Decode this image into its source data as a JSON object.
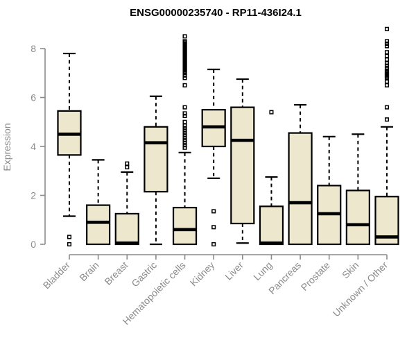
{
  "chart_data": {
    "type": "boxplot",
    "title": "ENSG00000235740 - RP11-436I24.1",
    "ylabel": "Expression",
    "xlabel": "",
    "ylim": [
      0,
      8.8
    ],
    "yticks": [
      0,
      2,
      4,
      6,
      8
    ],
    "grid": false,
    "legend": "none",
    "categories": [
      "Bladder",
      "Brain",
      "Breast",
      "Gastric",
      "Hematopoietic cells",
      "Kidney",
      "Liver",
      "Lung",
      "Pancreas",
      "Prostate",
      "Skin",
      "Unknown / Other"
    ],
    "series": [
      {
        "name": "Bladder",
        "whislo": 1.15,
        "q1": 3.65,
        "med": 4.5,
        "q3": 5.45,
        "whishi": 7.8,
        "outliers": [
          0.3,
          0.0
        ]
      },
      {
        "name": "Brain",
        "whislo": 0.0,
        "q1": 0.0,
        "med": 0.9,
        "q3": 1.6,
        "whishi": 3.45,
        "outliers": []
      },
      {
        "name": "Breast",
        "whislo": 0.0,
        "q1": 0.0,
        "med": 0.05,
        "q3": 1.25,
        "whishi": 2.95,
        "outliers": [
          3.3,
          3.15
        ]
      },
      {
        "name": "Gastric",
        "whislo": 0.0,
        "q1": 2.15,
        "med": 4.15,
        "q3": 4.8,
        "whishi": 6.05,
        "outliers": []
      },
      {
        "name": "Hematopoietic cells",
        "whislo": 0.0,
        "q1": 0.0,
        "med": 0.6,
        "q3": 1.5,
        "whishi": 3.75,
        "outliers": [
          8.5,
          8.3,
          8.25,
          8.2,
          8.15,
          8.1,
          8.05,
          8.0,
          7.95,
          7.9,
          7.85,
          7.8,
          7.75,
          7.7,
          7.65,
          7.6,
          7.55,
          7.5,
          7.45,
          7.4,
          7.35,
          7.3,
          7.25,
          7.2,
          7.15,
          7.1,
          7.05,
          7.0,
          6.9,
          6.8,
          6.5,
          5.6,
          5.35,
          5.25,
          5.0,
          4.85,
          4.75,
          4.65,
          4.55,
          4.45,
          4.35,
          4.25,
          4.15,
          4.05,
          3.95
        ]
      },
      {
        "name": "Kidney",
        "whislo": 2.7,
        "q1": 4.0,
        "med": 4.8,
        "q3": 5.5,
        "whishi": 7.15,
        "outliers": [
          1.35,
          0.7,
          0.0
        ]
      },
      {
        "name": "Liver",
        "whislo": 0.05,
        "q1": 0.85,
        "med": 4.25,
        "q3": 5.6,
        "whishi": 6.75,
        "outliers": []
      },
      {
        "name": "Lung",
        "whislo": 0.0,
        "q1": 0.0,
        "med": 0.05,
        "q3": 1.55,
        "whishi": 2.75,
        "outliers": [
          5.4
        ]
      },
      {
        "name": "Pancreas",
        "whislo": 0.0,
        "q1": 0.0,
        "med": 1.7,
        "q3": 4.55,
        "whishi": 5.7,
        "outliers": []
      },
      {
        "name": "Prostate",
        "whislo": 0.0,
        "q1": 0.0,
        "med": 1.25,
        "q3": 2.4,
        "whishi": 4.4,
        "outliers": []
      },
      {
        "name": "Skin",
        "whislo": 0.0,
        "q1": 0.0,
        "med": 0.8,
        "q3": 2.2,
        "whishi": 4.5,
        "outliers": []
      },
      {
        "name": "Unknown / Other",
        "whislo": 0.0,
        "q1": 0.0,
        "med": 0.3,
        "q3": 1.95,
        "whishi": 4.8,
        "outliers": [
          8.8,
          8.3,
          8.2,
          8.1,
          7.85,
          7.7,
          7.55,
          7.4,
          7.3,
          7.2,
          7.1,
          7.05,
          7.0,
          6.95,
          6.9,
          6.85,
          6.8,
          6.65,
          6.5,
          5.6,
          5.1
        ]
      }
    ],
    "colors": {
      "box_fill": "#ede8cd",
      "box_border": "#000000",
      "median": "#000000",
      "whisker": "#000000",
      "outlier": "#000000",
      "axis": "#8a8a8a",
      "axis_text": "#8a8a8a",
      "title": "#000000",
      "background": "#ffffff"
    }
  }
}
